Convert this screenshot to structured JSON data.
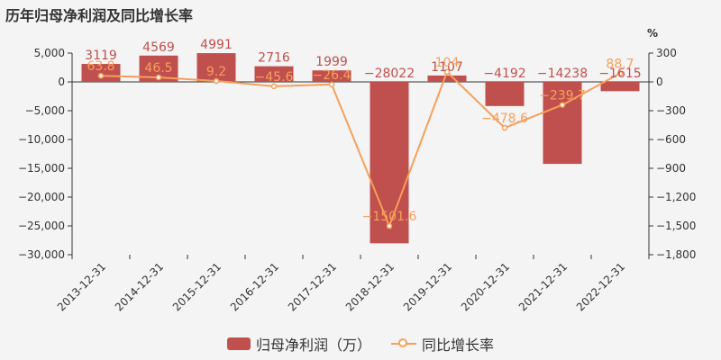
{
  "title": "历年归母净利润及同比增长率",
  "colors": {
    "bar": "#c0504d",
    "line": "#f5a05a"
  },
  "chart_data": {
    "type": "bar",
    "categories": [
      "2013-12-31",
      "2014-12-31",
      "2015-12-31",
      "2016-12-31",
      "2017-12-31",
      "2018-12-31",
      "2019-12-31",
      "2020-12-31",
      "2021-12-31",
      "2022-12-31"
    ],
    "series": [
      {
        "name": "归母净利润（万）",
        "type": "bar",
        "axis": "left",
        "values": [
          3119,
          4569,
          4991,
          2716,
          1999,
          -28022,
          1107,
          -4192,
          -14238,
          -1615
        ],
        "labels": [
          "3119",
          "4569",
          "4991",
          "2716",
          "1999",
          "−28022",
          "1107",
          "−4192",
          "−14238",
          "−1615"
        ]
      },
      {
        "name": "同比增长率",
        "type": "line",
        "axis": "right",
        "values": [
          63.8,
          46.5,
          9.2,
          -45.6,
          -26.4,
          -1501.6,
          104,
          -478.6,
          -239.7,
          88.7
        ],
        "labels": [
          "63.8",
          "46.5",
          "9.2",
          "−45.6",
          "−26.4",
          "−1501.6",
          "104",
          "−478.6",
          "−239.7",
          "88.7"
        ]
      }
    ],
    "left_axis": {
      "ylim": [
        -30000,
        5000
      ],
      "ticks": [
        5000,
        0,
        -5000,
        -10000,
        -15000,
        -20000,
        -25000,
        -30000
      ],
      "tick_labels": [
        "5,000",
        "0",
        "−5,000",
        "−10,000",
        "−15,000",
        "−20,000",
        "−25,000",
        "−30,000"
      ]
    },
    "right_axis": {
      "unit": "%",
      "ylim": [
        -1800,
        300
      ],
      "ticks": [
        300,
        0,
        -300,
        -600,
        -900,
        -1200,
        -1500,
        -1800
      ],
      "tick_labels": [
        "300",
        "0",
        "−300",
        "−600",
        "−900",
        "−1,200",
        "−1,500",
        "−1,800"
      ]
    },
    "legend": {
      "position": "bottom",
      "items": [
        {
          "label": "归母净利润（万）",
          "kind": "bar"
        },
        {
          "label": "同比增长率",
          "kind": "line"
        }
      ]
    }
  }
}
